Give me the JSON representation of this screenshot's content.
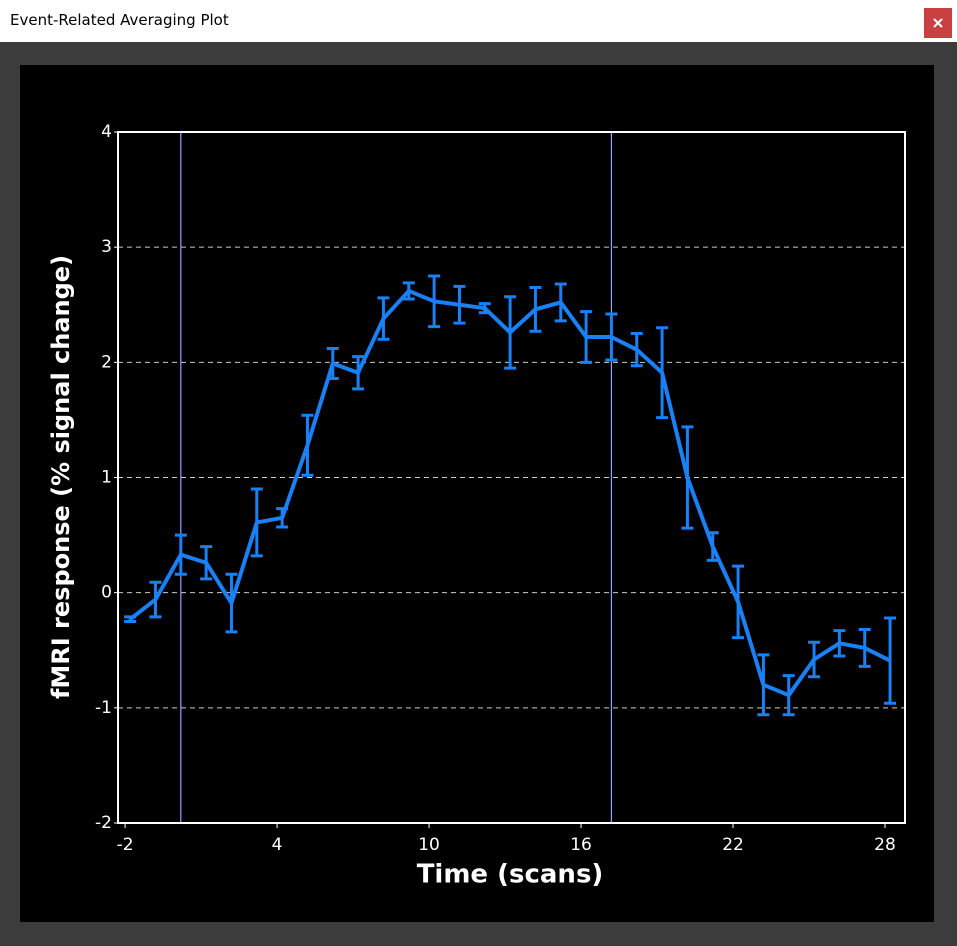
{
  "window": {
    "title": "Event-Related Averaging Plot"
  },
  "chart_data": {
    "type": "line",
    "xlabel": "Time (scans)",
    "ylabel": "fMRI response (% signal change)",
    "x": [
      -1.8,
      -0.8,
      0.2,
      1.2,
      2.2,
      3.2,
      4.2,
      5.2,
      6.2,
      7.2,
      8.2,
      9.2,
      10.2,
      11.2,
      12.2,
      13.2,
      14.2,
      15.2,
      16.2,
      17.2,
      18.2,
      19.2,
      20.2,
      21.2,
      22.2,
      23.2,
      24.2,
      25.2,
      26.2,
      27.2,
      28.2
    ],
    "series": [
      {
        "color": "#1a80f5",
        "values": [
          -0.23,
          -0.06,
          0.33,
          0.26,
          -0.09,
          0.61,
          0.65,
          1.28,
          1.99,
          1.91,
          2.38,
          2.62,
          2.53,
          2.5,
          2.47,
          2.26,
          2.46,
          2.52,
          2.22,
          2.22,
          2.11,
          1.91,
          1.0,
          0.4,
          -0.08,
          -0.8,
          -0.89,
          -0.58,
          -0.44,
          -0.48,
          -0.59
        ],
        "errors": [
          0.02,
          0.15,
          0.17,
          0.14,
          0.25,
          0.29,
          0.08,
          0.26,
          0.13,
          0.14,
          0.18,
          0.07,
          0.22,
          0.16,
          0.04,
          0.31,
          0.19,
          0.16,
          0.22,
          0.2,
          0.14,
          0.39,
          0.44,
          0.12,
          0.31,
          0.26,
          0.17,
          0.15,
          0.11,
          0.16,
          0.37
        ]
      }
    ],
    "event_lines": [
      0.2,
      17.2
    ],
    "xlim": [
      -2.28,
      28.79
    ],
    "xticks": [
      -2,
      4,
      10,
      16,
      22,
      28
    ],
    "ylim": [
      -2,
      4
    ],
    "yticks": [
      -2,
      -1,
      0,
      1,
      2,
      3,
      4
    ],
    "grid": true
  }
}
